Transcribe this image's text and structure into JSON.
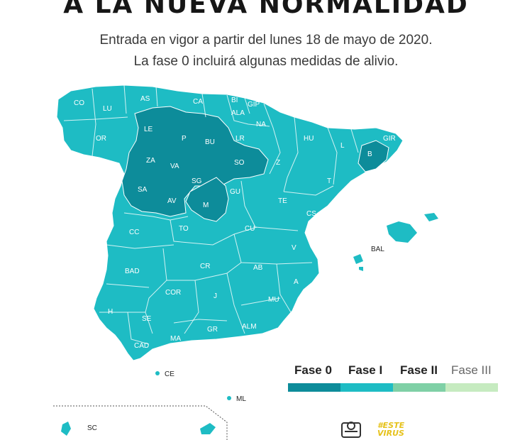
{
  "title": "A LA NUEVA NORMALIDAD",
  "subtitle_line1": "Entrada en vigor a partir del lunes 18 de mayo de 2020.",
  "subtitle_line2": "La fase 0 incluirá algunas medidas de alivio.",
  "colors": {
    "fase0": "#0d8c9a",
    "fase1": "#1ebcc4",
    "fase2": "#7fd0a6",
    "fase3": "#c6ebc0",
    "border": "#ffffff"
  },
  "provinces_fase0": [
    "LE",
    "P",
    "BU",
    "ZA",
    "VA",
    "SO",
    "SA",
    "SG",
    "AV",
    "M",
    "B"
  ],
  "map_labels": [
    "CO",
    "LU",
    "AS",
    "CA",
    "BI",
    "GIP",
    "ALA",
    "NA",
    "LE",
    "P",
    "BU",
    "LR",
    "OR",
    "HU",
    "L",
    "GIR",
    "B",
    "ZA",
    "VA",
    "SO",
    "Z",
    "SA",
    "SG",
    "GU",
    "T",
    "AV",
    "M",
    "TE",
    "CS",
    "CC",
    "TO",
    "CU",
    "V",
    "BAD",
    "CR",
    "AB",
    "A",
    "COR",
    "J",
    "MU",
    "H",
    "SE",
    "GR",
    "ALM",
    "CAD",
    "MA",
    "BAL",
    "CE",
    "ML",
    "SC"
  ],
  "legend": [
    {
      "label": "Fase 0",
      "color": "#0d8c9a"
    },
    {
      "label": "Fase I",
      "color": "#1ebcc4"
    },
    {
      "label": "Fase II",
      "color": "#7fd0a6"
    },
    {
      "label": "Fase III",
      "color": "#c6ebc0"
    }
  ],
  "logo_text": "#ESTE VIRUS"
}
